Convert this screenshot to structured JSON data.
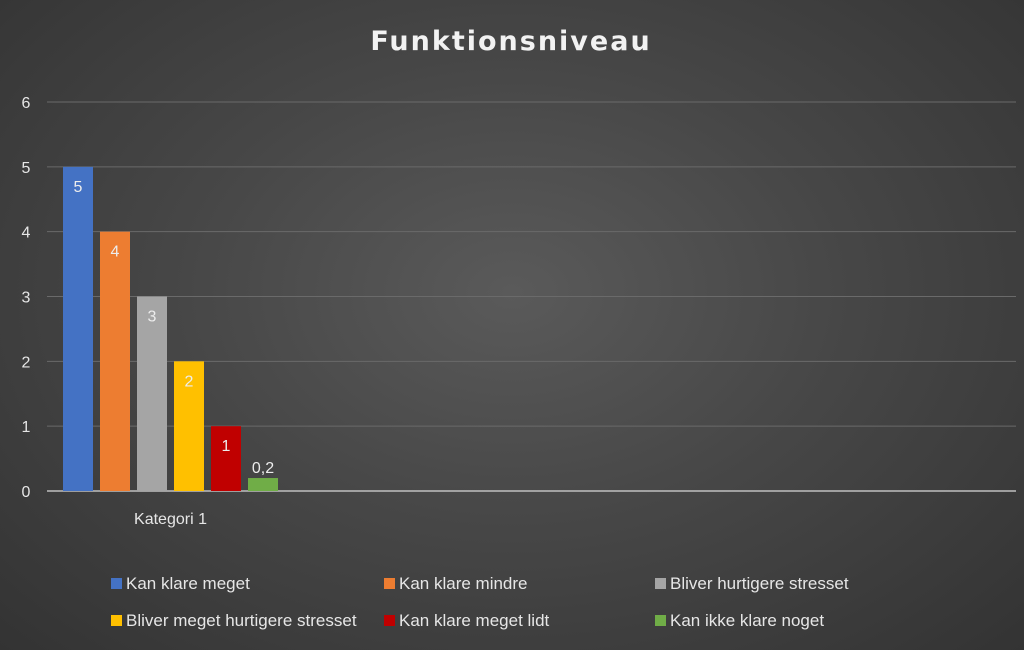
{
  "chart_data": {
    "type": "bar",
    "title": "Funktionsniveau",
    "categories": [
      "Kategori 1"
    ],
    "ylim": [
      0,
      6
    ],
    "yticks": [
      "0",
      "1",
      "2",
      "3",
      "4",
      "5",
      "6"
    ],
    "grid": true,
    "legend_position": "bottom",
    "series": [
      {
        "name": "Kan klare meget",
        "values": [
          5
        ],
        "label": "5",
        "color": "#4472c4"
      },
      {
        "name": "Kan klare mindre",
        "values": [
          4
        ],
        "label": "4",
        "color": "#ed7d31"
      },
      {
        "name": "Bliver hurtigere stresset",
        "values": [
          3
        ],
        "label": "3",
        "color": "#a5a5a5"
      },
      {
        "name": "Bliver meget hurtigere stresset",
        "values": [
          2
        ],
        "label": "2",
        "color": "#ffc000"
      },
      {
        "name": "Kan klare meget lidt",
        "values": [
          1
        ],
        "label": "1",
        "color": "#c00000"
      },
      {
        "name": "Kan ikke klare noget",
        "values": [
          0.2
        ],
        "label": "0,2",
        "color": "#70ad47"
      }
    ]
  }
}
